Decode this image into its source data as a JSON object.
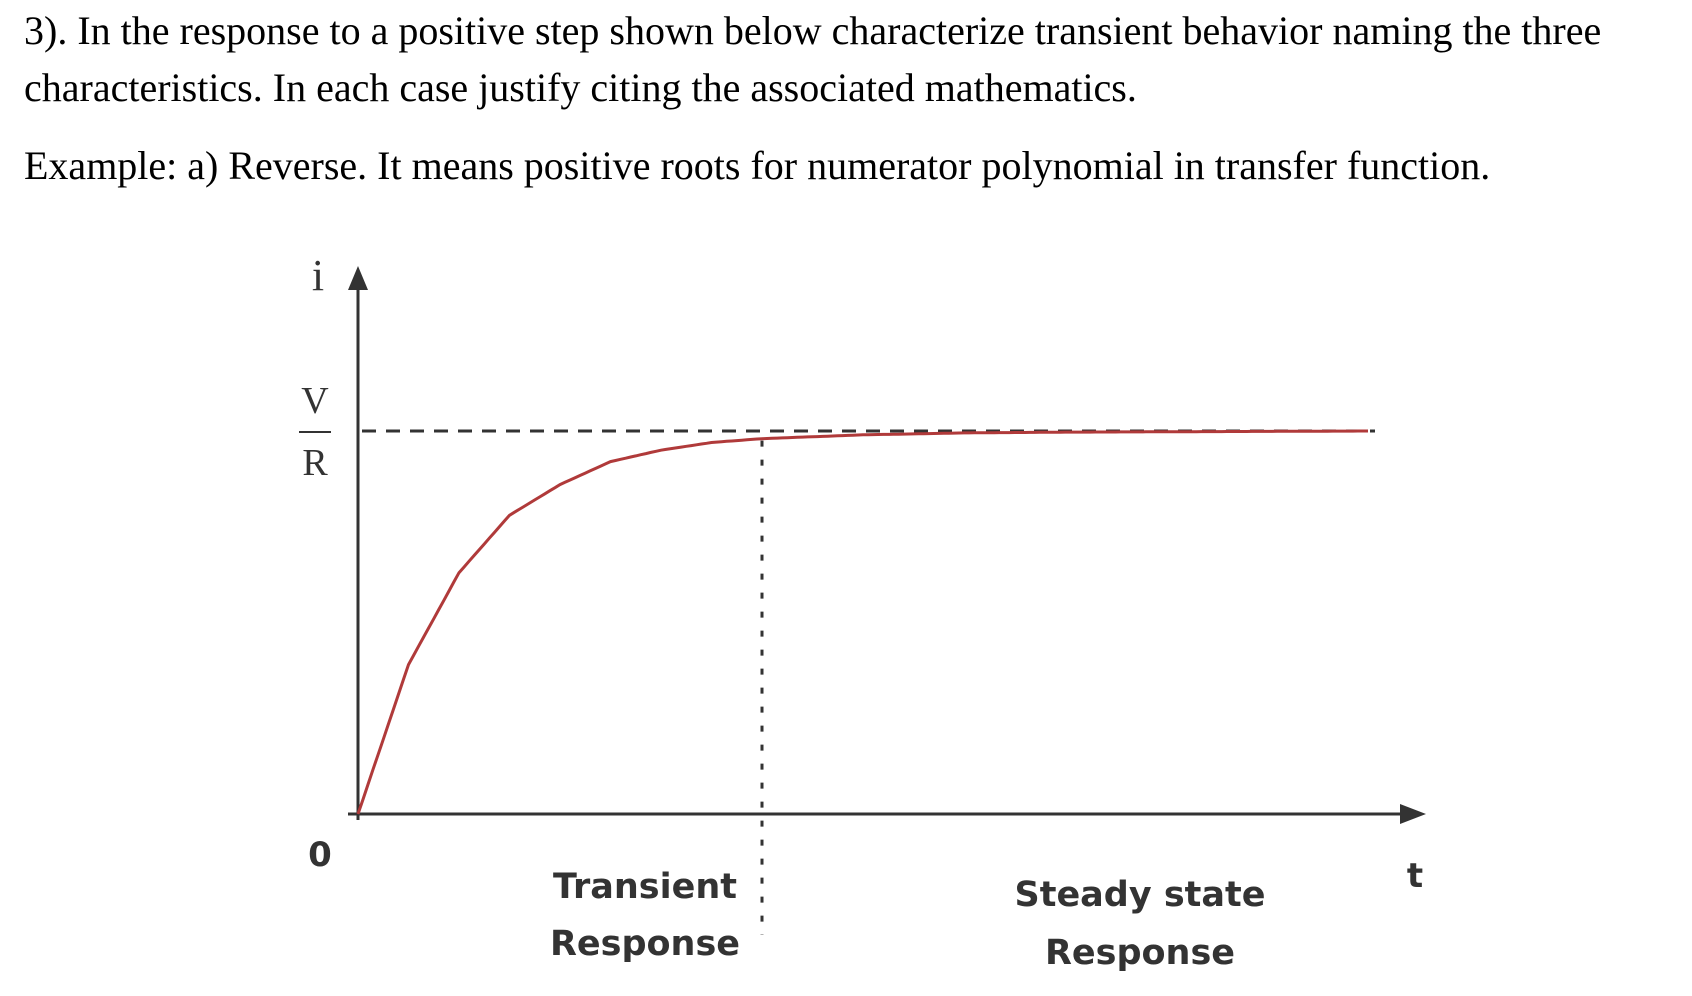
{
  "question": {
    "text": "3). In the response to a positive step shown below characterize transient behavior naming the three characteristics. In each case justify citing the associated mathematics.",
    "example": "Example: a) Reverse. It means positive roots for numerator polynomial in transfer function."
  },
  "chart_data": {
    "type": "line",
    "y_axis_label": "i",
    "x_axis_label": "t",
    "origin_label": "0",
    "asymptote_label_numerator": "V",
    "asymptote_label_denominator": "R",
    "regions": [
      {
        "label_line1": "Transient",
        "label_line2": "Response"
      },
      {
        "label_line1": "Steady state",
        "label_line2": "Response"
      }
    ],
    "curve": "exponential rise i = (V/R)(1 - e^(-t/τ)) from 0 approaching V/R",
    "series": [
      {
        "x": [
          0,
          0.5,
          1,
          1.5,
          2,
          2.5,
          3,
          3.5,
          4,
          5,
          6,
          7,
          8,
          9,
          10
        ],
        "values": [
          0,
          0.39,
          0.63,
          0.78,
          0.86,
          0.92,
          0.95,
          0.97,
          0.98,
          0.99,
          0.995,
          0.997,
          0.998,
          0.999,
          1.0
        ]
      }
    ],
    "transient_boundary_x": 4,
    "xlim": [
      0,
      10
    ],
    "ylim": [
      0,
      1.15
    ],
    "colors": {
      "curve": "#b03a3a",
      "axes": "#333333",
      "dashed": "#333333"
    },
    "grid": false,
    "legend": "none"
  }
}
